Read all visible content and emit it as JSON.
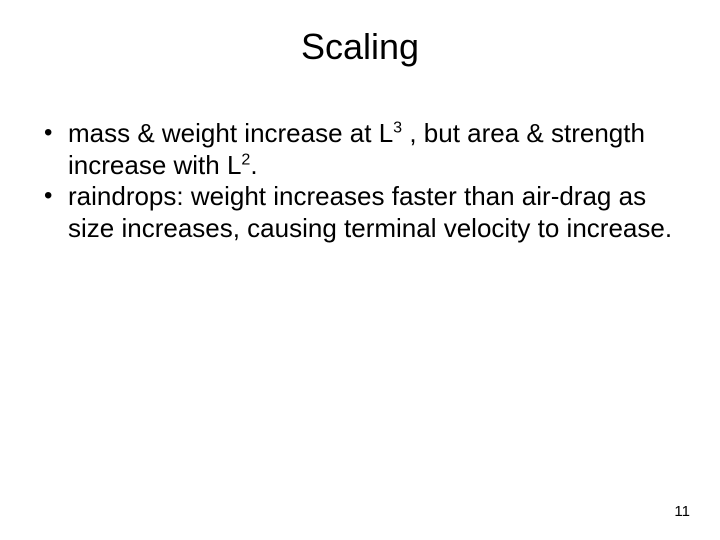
{
  "slide": {
    "title": "Scaling",
    "bullets": [
      {
        "pre1": "mass & weight increase at L",
        "sup1": "3",
        "mid1": " , but area & strength increase with L",
        "sup2": "2",
        "post1": "."
      },
      {
        "text": "raindrops: weight increases faster than air-drag as size increases, causing terminal velocity to increase."
      }
    ],
    "page_number": "11",
    "colors": {
      "background": "#ffffff",
      "text": "#000000"
    },
    "fonts": {
      "title_size_pt": 36,
      "body_size_pt": 26,
      "pagenum_size_pt": 15,
      "family": "Arial"
    }
  }
}
